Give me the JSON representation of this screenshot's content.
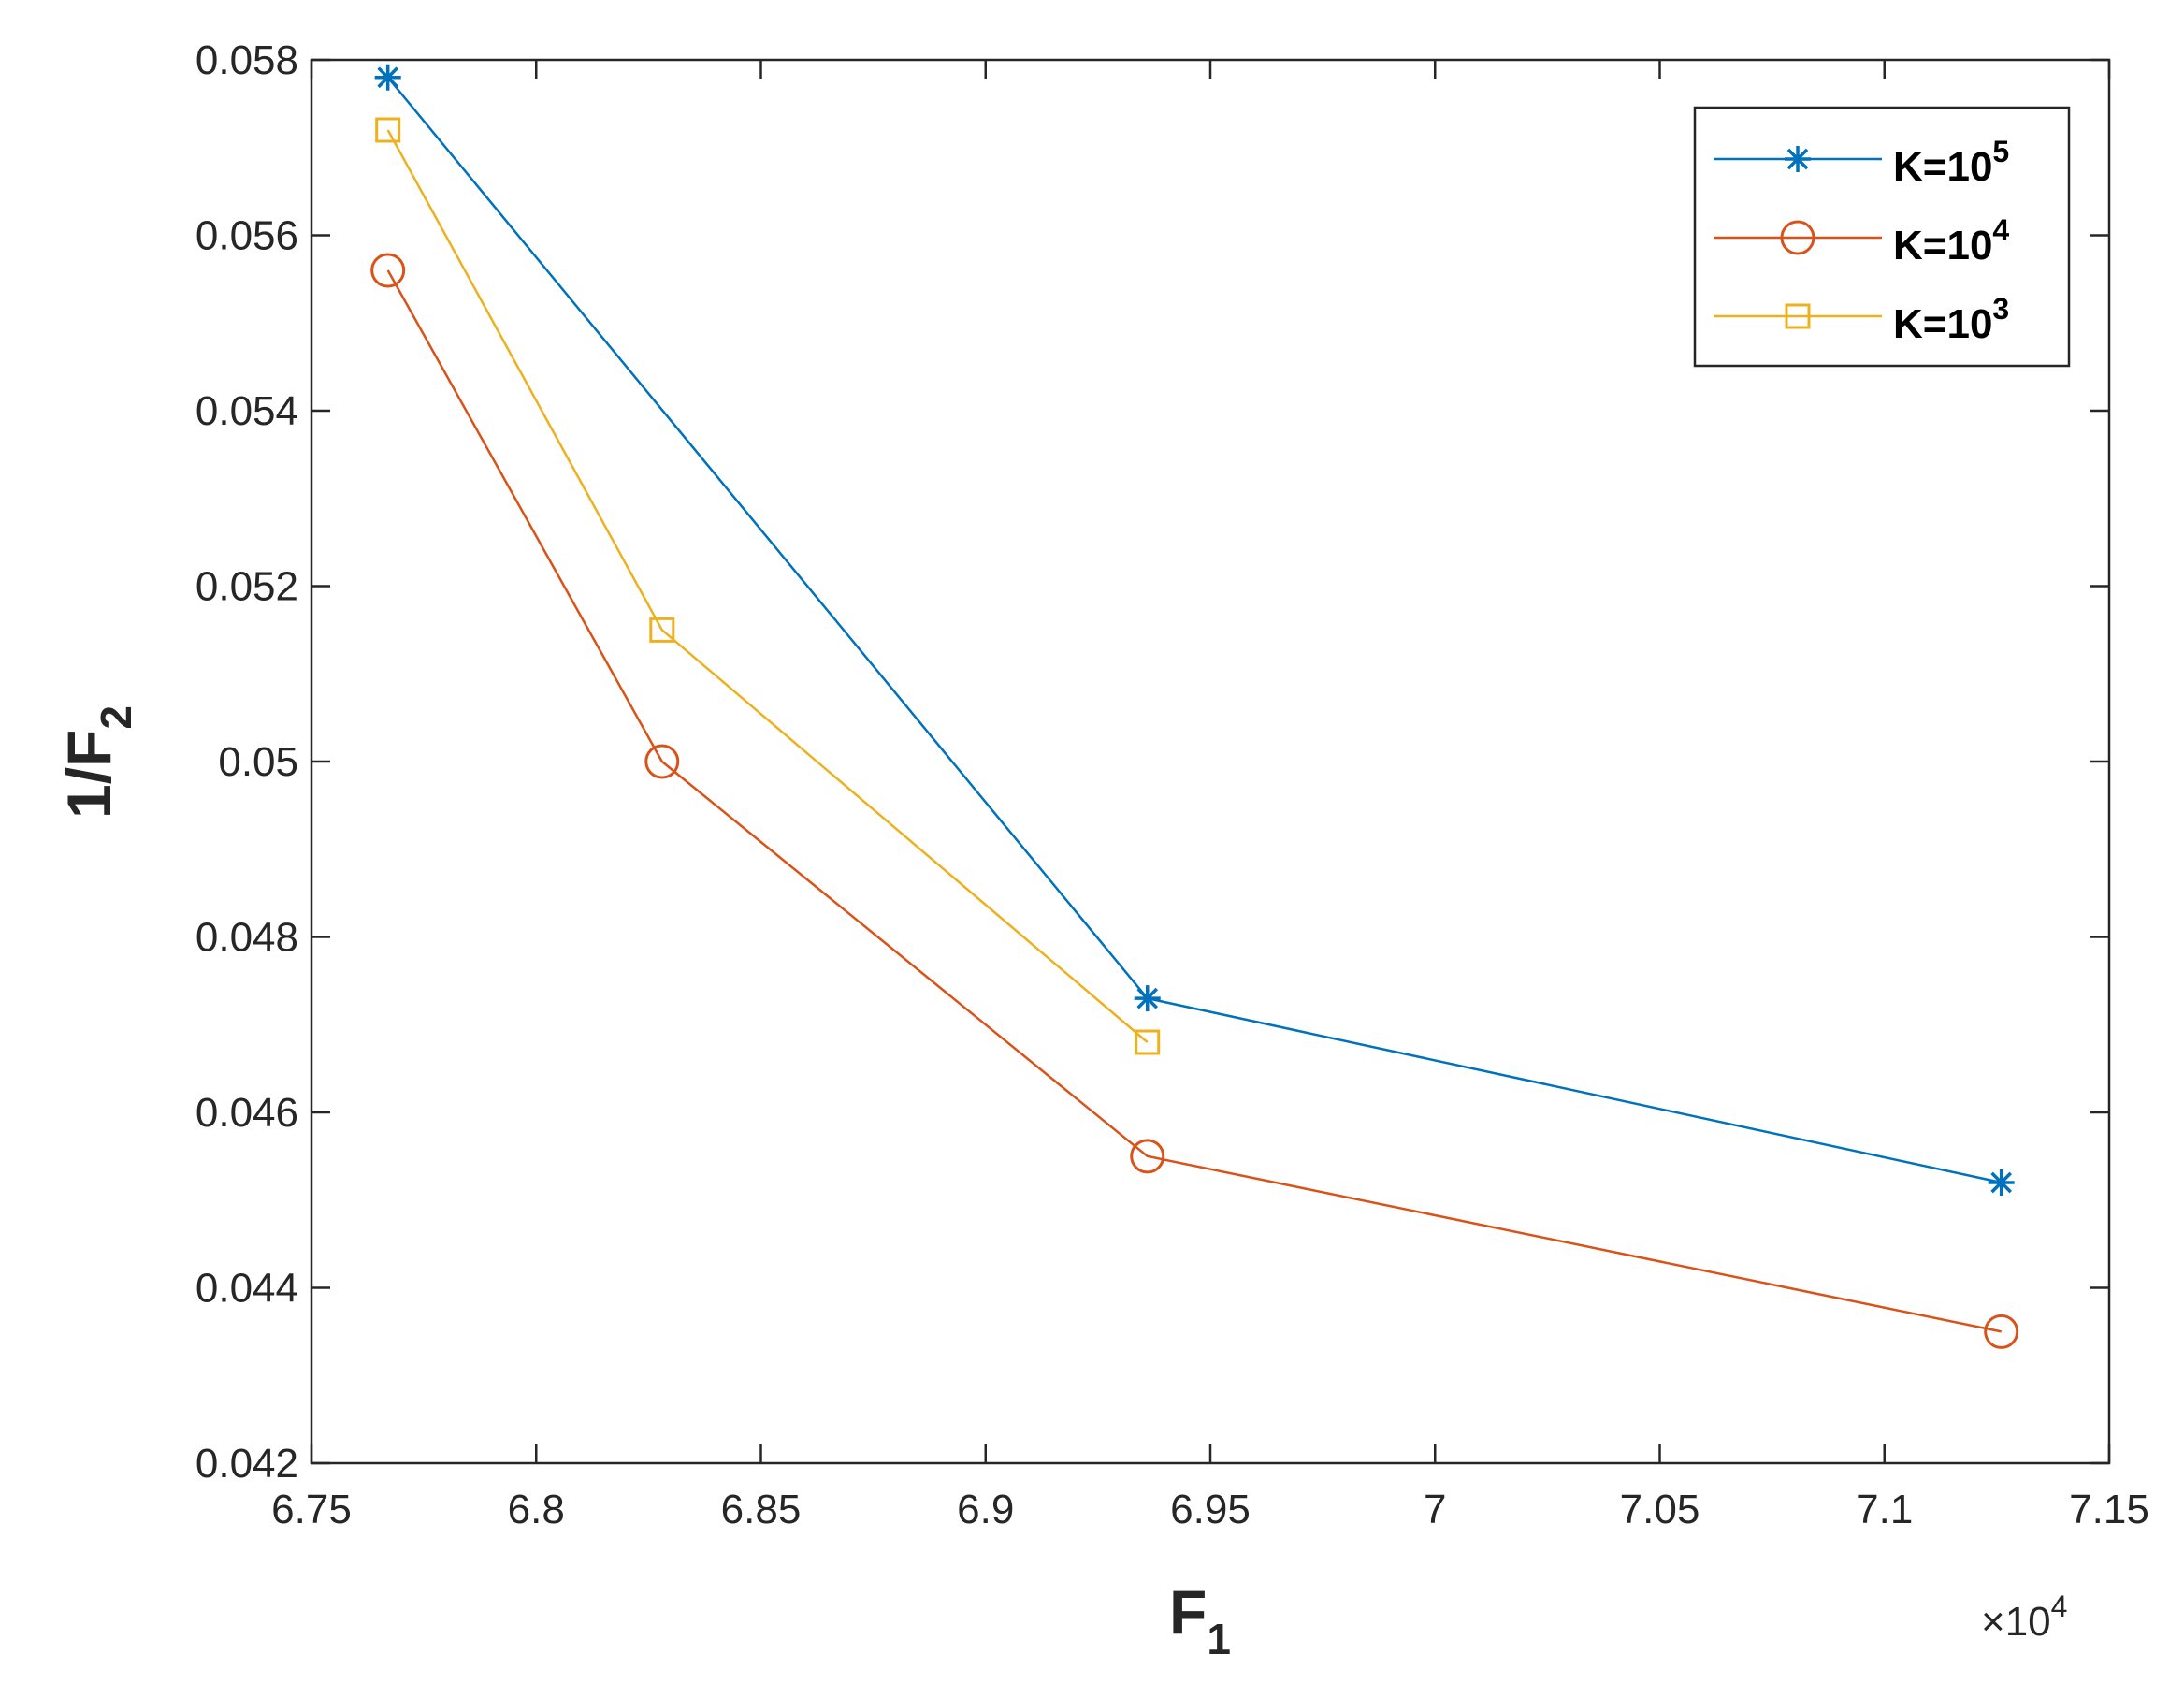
{
  "chart_data": {
    "type": "line",
    "title": "",
    "xlabel": "F",
    "xlabel_sub": "1",
    "ylabel": "1/F",
    "ylabel_sub": "2",
    "x_exponent_prefix": "×10",
    "x_exponent_power": "4",
    "xlim": [
      6.75,
      7.15
    ],
    "ylim": [
      0.042,
      0.058
    ],
    "xticks": [
      6.75,
      6.8,
      6.85,
      6.9,
      6.95,
      7.0,
      7.05,
      7.1,
      7.15
    ],
    "xtick_labels": [
      "6.75",
      "6.8",
      "6.85",
      "6.9",
      "6.95",
      "7",
      "7.05",
      "7.1",
      "7.15"
    ],
    "yticks": [
      0.042,
      0.044,
      0.046,
      0.048,
      0.05,
      0.052,
      0.054,
      0.056,
      0.058
    ],
    "ytick_labels": [
      "0.042",
      "0.044",
      "0.046",
      "0.048",
      "0.05",
      "0.052",
      "0.054",
      "0.056",
      "0.058"
    ],
    "grid": false,
    "legend_position": "top-right",
    "series": [
      {
        "name": "K=10",
        "superscript": "5",
        "color": "#0072BD",
        "marker": "asterisk",
        "x": [
          6.767,
          6.936,
          7.126
        ],
        "y": [
          0.0578,
          0.0473,
          0.0452
        ]
      },
      {
        "name": "K=10",
        "superscript": "4",
        "color": "#D95319",
        "marker": "circle",
        "x": [
          6.767,
          6.828,
          6.936,
          7.126
        ],
        "y": [
          0.0556,
          0.05,
          0.0455,
          0.0435
        ]
      },
      {
        "name": "K=10",
        "superscript": "3",
        "color": "#EDB120",
        "marker": "square",
        "x": [
          6.767,
          6.828,
          6.936
        ],
        "y": [
          0.0572,
          0.0515,
          0.0468
        ]
      }
    ]
  }
}
